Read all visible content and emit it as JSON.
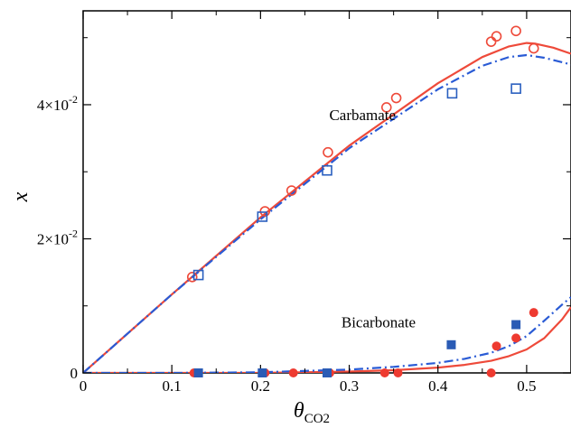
{
  "chart_data": {
    "type": "scatter",
    "xlabel": "θCO2",
    "xlabel_main": "θ",
    "xlabel_sub": "CO2",
    "ylabel": "x",
    "xlim": [
      0,
      0.55
    ],
    "ylim": [
      0,
      0.054
    ],
    "x_ticks": [
      {
        "value": 0,
        "label": "0"
      },
      {
        "value": 0.1,
        "label": "0.1"
      },
      {
        "value": 0.2,
        "label": "0.2"
      },
      {
        "value": 0.3,
        "label": "0.3"
      },
      {
        "value": 0.4,
        "label": "0.4"
      },
      {
        "value": 0.5,
        "label": "0.5"
      }
    ],
    "y_ticks": [
      {
        "value": 0,
        "label": "0",
        "base": "0",
        "exp": ""
      },
      {
        "value": 0.02,
        "label": "2×10-2",
        "base": "2×10",
        "exp": "-2"
      },
      {
        "value": 0.04,
        "label": "4×10-2",
        "base": "4×10",
        "exp": "-2"
      }
    ],
    "annotations": [
      {
        "text": "Carbamate",
        "x": 0.315,
        "y": 0.0377
      },
      {
        "text": "Bicarbonate",
        "x": 0.333,
        "y": 0.0068
      }
    ],
    "series": [
      {
        "kind": "scatter",
        "marker": "circle-open",
        "color": "#ee4a3a",
        "x": [
          0.123,
          0.205,
          0.235,
          0.276,
          0.342,
          0.353,
          0.46,
          0.466,
          0.488,
          0.508
        ],
        "y": [
          0.0143,
          0.0241,
          0.0272,
          0.0329,
          0.0396,
          0.041,
          0.0494,
          0.0502,
          0.051,
          0.0484
        ]
      },
      {
        "kind": "scatter",
        "marker": "square-open",
        "color": "#2a5fbf",
        "x": [
          0.13,
          0.202,
          0.275,
          0.416,
          0.488
        ],
        "y": [
          0.0146,
          0.0233,
          0.0302,
          0.0417,
          0.0424
        ]
      },
      {
        "kind": "scatter",
        "marker": "circle-filled",
        "color": "#ee3a30",
        "x": [
          0.125,
          0.205,
          0.237,
          0.278,
          0.34,
          0.355,
          0.46,
          0.466,
          0.488,
          0.508
        ],
        "y": [
          0.0,
          0.0,
          0.0,
          0.0,
          0.0,
          0.0,
          0.0,
          0.004,
          0.0052,
          0.009
        ]
      },
      {
        "kind": "scatter",
        "marker": "square-filled",
        "color": "#2a5bb5",
        "x": [
          0.13,
          0.202,
          0.275,
          0.415,
          0.488
        ],
        "y": [
          0.0,
          0.0,
          0.0,
          0.0042,
          0.0072
        ]
      },
      {
        "kind": "line",
        "style": "solid",
        "color": "#ee4a3a",
        "x": [
          0,
          0.1,
          0.2,
          0.3,
          0.4,
          0.45,
          0.48,
          0.5,
          0.51,
          0.53,
          0.55
        ],
        "y": [
          0,
          0.0117,
          0.0232,
          0.0339,
          0.0432,
          0.0471,
          0.0487,
          0.0492,
          0.0491,
          0.0485,
          0.0476
        ]
      },
      {
        "kind": "line",
        "style": "dash-dot",
        "color": "#2a5bd5",
        "x": [
          0,
          0.1,
          0.2,
          0.3,
          0.4,
          0.45,
          0.48,
          0.5,
          0.52,
          0.55
        ],
        "y": [
          0,
          0.0117,
          0.0229,
          0.0335,
          0.0423,
          0.0458,
          0.0471,
          0.0474,
          0.047,
          0.046
        ]
      },
      {
        "kind": "line",
        "style": "solid",
        "color": "#ee4a3a",
        "x": [
          0,
          0.1,
          0.2,
          0.3,
          0.35,
          0.4,
          0.43,
          0.46,
          0.48,
          0.5,
          0.52,
          0.54,
          0.55
        ],
        "y": [
          0,
          0.0,
          0.0,
          0.0002,
          0.0004,
          0.0008,
          0.0012,
          0.0018,
          0.0025,
          0.0035,
          0.0052,
          0.008,
          0.0098
        ]
      },
      {
        "kind": "line",
        "style": "dash-dot",
        "color": "#2a5bd5",
        "x": [
          0,
          0.1,
          0.2,
          0.3,
          0.35,
          0.4,
          0.43,
          0.46,
          0.48,
          0.5,
          0.52,
          0.54,
          0.55
        ],
        "y": [
          0,
          0.0,
          0.0001,
          0.0005,
          0.0009,
          0.0015,
          0.0021,
          0.003,
          0.004,
          0.0055,
          0.0078,
          0.0102,
          0.0113
        ]
      }
    ]
  }
}
